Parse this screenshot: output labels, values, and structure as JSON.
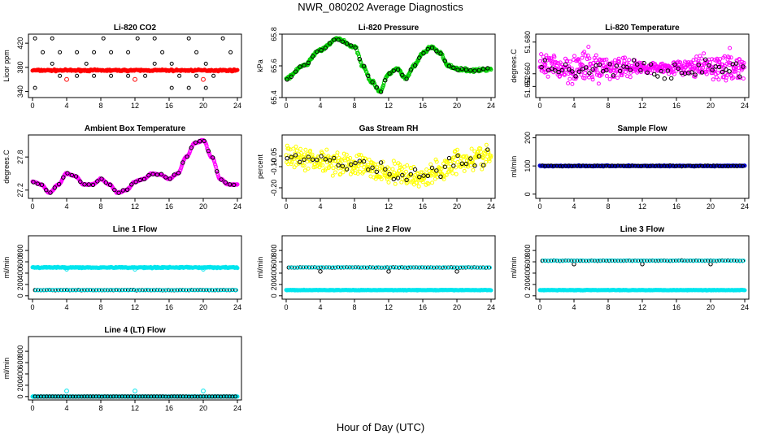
{
  "figure": {
    "title": "NWR_080202  Average Diagnostics",
    "xlabel": "Hour of Day (UTC)"
  },
  "colors": {
    "black": "#000000",
    "red": "#ff0000",
    "green": "#00cc00",
    "magenta": "#ff00ff",
    "yellow": "#ffff00",
    "blue": "#0000cc",
    "cyan": "#00e5ee"
  },
  "chart_data": [
    {
      "id": "p1",
      "type": "scatter",
      "title": "Li-820 CO2",
      "ylabel": "Licor ppm",
      "xlim": [
        0,
        24
      ],
      "ylim": [
        330,
        435
      ],
      "yticks": [
        340,
        380,
        420
      ],
      "ytick_labels": [
        "340",
        "380",
        "420"
      ],
      "xticks": [
        0,
        4,
        8,
        12,
        16,
        20,
        24
      ],
      "series": [
        {
          "name": "red line",
          "color": "red",
          "kind": "dense",
          "y": 375,
          "noise": 1.2,
          "outliers": [
            [
              4,
              360
            ],
            [
              12,
              360
            ],
            [
              20,
              360
            ]
          ]
        },
        {
          "name": "open squares",
          "color": "black",
          "kind": "bands",
          "levels": [
            428,
            405,
            386,
            366,
            346
          ],
          "spacing": 2
        }
      ]
    },
    {
      "id": "p2",
      "type": "scatter",
      "title": "Li-820 Pressure",
      "ylabel": "kPa",
      "xlim": [
        0,
        24
      ],
      "ylim": [
        65.4,
        65.8
      ],
      "yticks": [
        65.4,
        65.6,
        65.8
      ],
      "ytick_labels": [
        "65.4",
        "65.6",
        "65.8"
      ],
      "xticks": [
        0,
        4,
        8,
        12,
        16,
        20,
        24
      ],
      "series": [
        {
          "name": "green",
          "color": "green",
          "kind": "curve",
          "noise": 0.008,
          "curve": [
            [
              0,
              65.52
            ],
            [
              2,
              65.6
            ],
            [
              4,
              65.7
            ],
            [
              6,
              65.77
            ],
            [
              8,
              65.72
            ],
            [
              9,
              65.6
            ],
            [
              10,
              65.5
            ],
            [
              11,
              65.44
            ],
            [
              12,
              65.55
            ],
            [
              13,
              65.58
            ],
            [
              14,
              65.52
            ],
            [
              15,
              65.6
            ],
            [
              16,
              65.68
            ],
            [
              17,
              65.72
            ],
            [
              18,
              65.68
            ],
            [
              19,
              65.6
            ],
            [
              20,
              65.58
            ],
            [
              22,
              65.57
            ],
            [
              24,
              65.58
            ]
          ]
        },
        {
          "name": "black",
          "color": "black",
          "kind": "curvesparse",
          "noise": 0.006
        }
      ]
    },
    {
      "id": "p3",
      "type": "scatter",
      "title": "Li-820 Temperature",
      "ylabel": "degrees.C",
      "xlim": [
        0,
        24
      ],
      "ylim": [
        51.645,
        51.685
      ],
      "yticks": [
        51.652,
        51.66,
        51.68
      ],
      "ytick_labels": [
        "51.652",
        "51.660",
        "51.680"
      ],
      "xticks": [
        0,
        4,
        8,
        12,
        16,
        20,
        24
      ],
      "series": [
        {
          "name": "magenta",
          "color": "magenta",
          "kind": "noise",
          "y": 51.664,
          "noise": 0.007
        },
        {
          "name": "black",
          "color": "black",
          "kind": "noisesparse",
          "y": 51.663,
          "noise": 0.005
        }
      ]
    },
    {
      "id": "p4",
      "type": "scatter",
      "title": "Ambient Box Temperature",
      "ylabel": "degrees.C",
      "xlim": [
        0,
        24
      ],
      "ylim": [
        27.05,
        28.2
      ],
      "yticks": [
        27.2,
        27.8
      ],
      "ytick_labels": [
        "27.2",
        "27.8"
      ],
      "xticks": [
        0,
        4,
        8,
        12,
        16,
        20,
        24
      ],
      "series": [
        {
          "name": "magenta",
          "color": "magenta",
          "kind": "curve",
          "noise": 0.01,
          "curve": [
            [
              0,
              27.35
            ],
            [
              1,
              27.3
            ],
            [
              2,
              27.15
            ],
            [
              3,
              27.3
            ],
            [
              4,
              27.5
            ],
            [
              5,
              27.45
            ],
            [
              6,
              27.3
            ],
            [
              7,
              27.3
            ],
            [
              8,
              27.4
            ],
            [
              9,
              27.3
            ],
            [
              10,
              27.15
            ],
            [
              11,
              27.2
            ],
            [
              12,
              27.35
            ],
            [
              13,
              27.4
            ],
            [
              14,
              27.5
            ],
            [
              15,
              27.48
            ],
            [
              16,
              27.4
            ],
            [
              17,
              27.5
            ],
            [
              18,
              27.8
            ],
            [
              19,
              28.05
            ],
            [
              20,
              28.1
            ],
            [
              21,
              27.8
            ],
            [
              22,
              27.4
            ],
            [
              23,
              27.3
            ],
            [
              24,
              27.3
            ]
          ]
        },
        {
          "name": "black",
          "color": "black",
          "kind": "curvesparse",
          "noise": 0.01
        }
      ]
    },
    {
      "id": "p5",
      "type": "scatter",
      "title": "Gas Stream RH",
      "ylabel": "percent",
      "xlim": [
        0,
        24
      ],
      "ylim": [
        -0.25,
        0.05
      ],
      "yticks": [
        -0.2,
        -0.1,
        -0.05
      ],
      "ytick_labels": [
        "-0.20",
        "-0.10",
        "-0.05"
      ],
      "xticks": [
        0,
        4,
        8,
        12,
        16,
        20,
        24
      ],
      "series": [
        {
          "name": "yellow",
          "color": "yellow",
          "kind": "curve",
          "noise": 0.045,
          "curve": [
            [
              0,
              -0.06
            ],
            [
              4,
              -0.07
            ],
            [
              8,
              -0.09
            ],
            [
              12,
              -0.13
            ],
            [
              16,
              -0.15
            ],
            [
              18,
              -0.12
            ],
            [
              20,
              -0.07
            ],
            [
              24,
              -0.05
            ]
          ]
        },
        {
          "name": "black",
          "color": "black",
          "kind": "curvesparse",
          "noise": 0.035
        }
      ]
    },
    {
      "id": "p6",
      "type": "scatter",
      "title": "Sample Flow",
      "ylabel": "ml/min",
      "xlim": [
        0,
        24
      ],
      "ylim": [
        -15,
        210
      ],
      "yticks": [
        0,
        100,
        200
      ],
      "ytick_labels": [
        "0",
        "100",
        "200"
      ],
      "xticks": [
        0,
        4,
        8,
        12,
        16,
        20,
        24
      ],
      "series": [
        {
          "name": "blue",
          "color": "blue",
          "kind": "dense",
          "y": 100,
          "noise": 1.5
        },
        {
          "name": "black",
          "color": "black",
          "kind": "flatsparse",
          "y": 100,
          "noise": 1.2
        }
      ]
    },
    {
      "id": "p7",
      "type": "scatter",
      "title": "Line 1 Flow",
      "ylabel": "ml/min",
      "xlim": [
        0,
        24
      ],
      "ylim": [
        -60,
        1060
      ],
      "yticks": [
        0,
        200,
        400,
        600,
        800
      ],
      "ytick_labels": [
        "0",
        "200",
        "400",
        "600",
        "800"
      ],
      "xticks": [
        0,
        4,
        8,
        12,
        16,
        20,
        24
      ],
      "series": [
        {
          "name": "cyan",
          "color": "cyan",
          "kind": "dense",
          "y": 500,
          "noise": 9,
          "outliers": [
            [
              4,
              470
            ],
            [
              12,
              470
            ],
            [
              20,
              470
            ]
          ]
        },
        {
          "name": "black",
          "color": "black",
          "kind": "flatsparse",
          "y": 100,
          "noise": 4
        },
        {
          "name": "cyan low",
          "color": "cyan",
          "kind": "flatsparse",
          "y": 100,
          "noise": 3,
          "offset": 0.1
        }
      ]
    },
    {
      "id": "p8",
      "type": "scatter",
      "title": "Line 2 Flow",
      "ylabel": "ml/min",
      "xlim": [
        0,
        24
      ],
      "ylim": [
        -60,
        1060
      ],
      "yticks": [
        0,
        200,
        400,
        600,
        800
      ],
      "ytick_labels": [
        "0",
        "200",
        "400",
        "600",
        "800"
      ],
      "xticks": [
        0,
        4,
        8,
        12,
        16,
        20,
        24
      ],
      "series": [
        {
          "name": "cyan",
          "color": "cyan",
          "kind": "dense",
          "y": 100,
          "noise": 4
        },
        {
          "name": "black",
          "color": "black",
          "kind": "flatsparse",
          "y": 500,
          "noise": 4,
          "outliers": [
            [
              4,
              430
            ],
            [
              12,
              430
            ],
            [
              20,
              430
            ]
          ]
        },
        {
          "name": "cyan high",
          "color": "cyan",
          "kind": "flatsparse",
          "y": 500,
          "noise": 3,
          "offset": 0.1
        }
      ]
    },
    {
      "id": "p9",
      "type": "scatter",
      "title": "Line 3 Flow",
      "ylabel": "ml/min",
      "xlim": [
        0,
        24
      ],
      "ylim": [
        -60,
        1060
      ],
      "yticks": [
        0,
        200,
        400,
        600,
        800
      ],
      "ytick_labels": [
        "0",
        "200",
        "400",
        "600",
        "800"
      ],
      "xticks": [
        0,
        4,
        8,
        12,
        16,
        20,
        24
      ],
      "series": [
        {
          "name": "cyan",
          "color": "cyan",
          "kind": "dense",
          "y": 100,
          "noise": 4
        },
        {
          "name": "black",
          "color": "black",
          "kind": "flatsparse",
          "y": 620,
          "noise": 4,
          "outliers": [
            [
              4,
              560
            ],
            [
              12,
              560
            ],
            [
              20,
              560
            ]
          ]
        },
        {
          "name": "cyan high",
          "color": "cyan",
          "kind": "flatsparse",
          "y": 620,
          "noise": 3,
          "offset": 0.1
        }
      ]
    },
    {
      "id": "p10",
      "type": "scatter",
      "title": "Line 4 (LT) Flow",
      "ylabel": "ml/min",
      "xlim": [
        0,
        24
      ],
      "ylim": [
        -60,
        1060
      ],
      "yticks": [
        0,
        200,
        400,
        600,
        800
      ],
      "ytick_labels": [
        "0",
        "200",
        "400",
        "600",
        "800"
      ],
      "xticks": [
        0,
        4,
        8,
        12,
        16,
        20,
        24
      ],
      "series": [
        {
          "name": "cyan",
          "color": "cyan",
          "kind": "dense",
          "y": 0,
          "noise": 2,
          "outliers": [
            [
              4,
              100
            ],
            [
              12,
              100
            ],
            [
              20,
              100
            ],
            [
              0.1,
              0
            ]
          ]
        },
        {
          "name": "black",
          "color": "black",
          "kind": "flatsparse",
          "y": 0,
          "noise": 2
        }
      ]
    }
  ]
}
